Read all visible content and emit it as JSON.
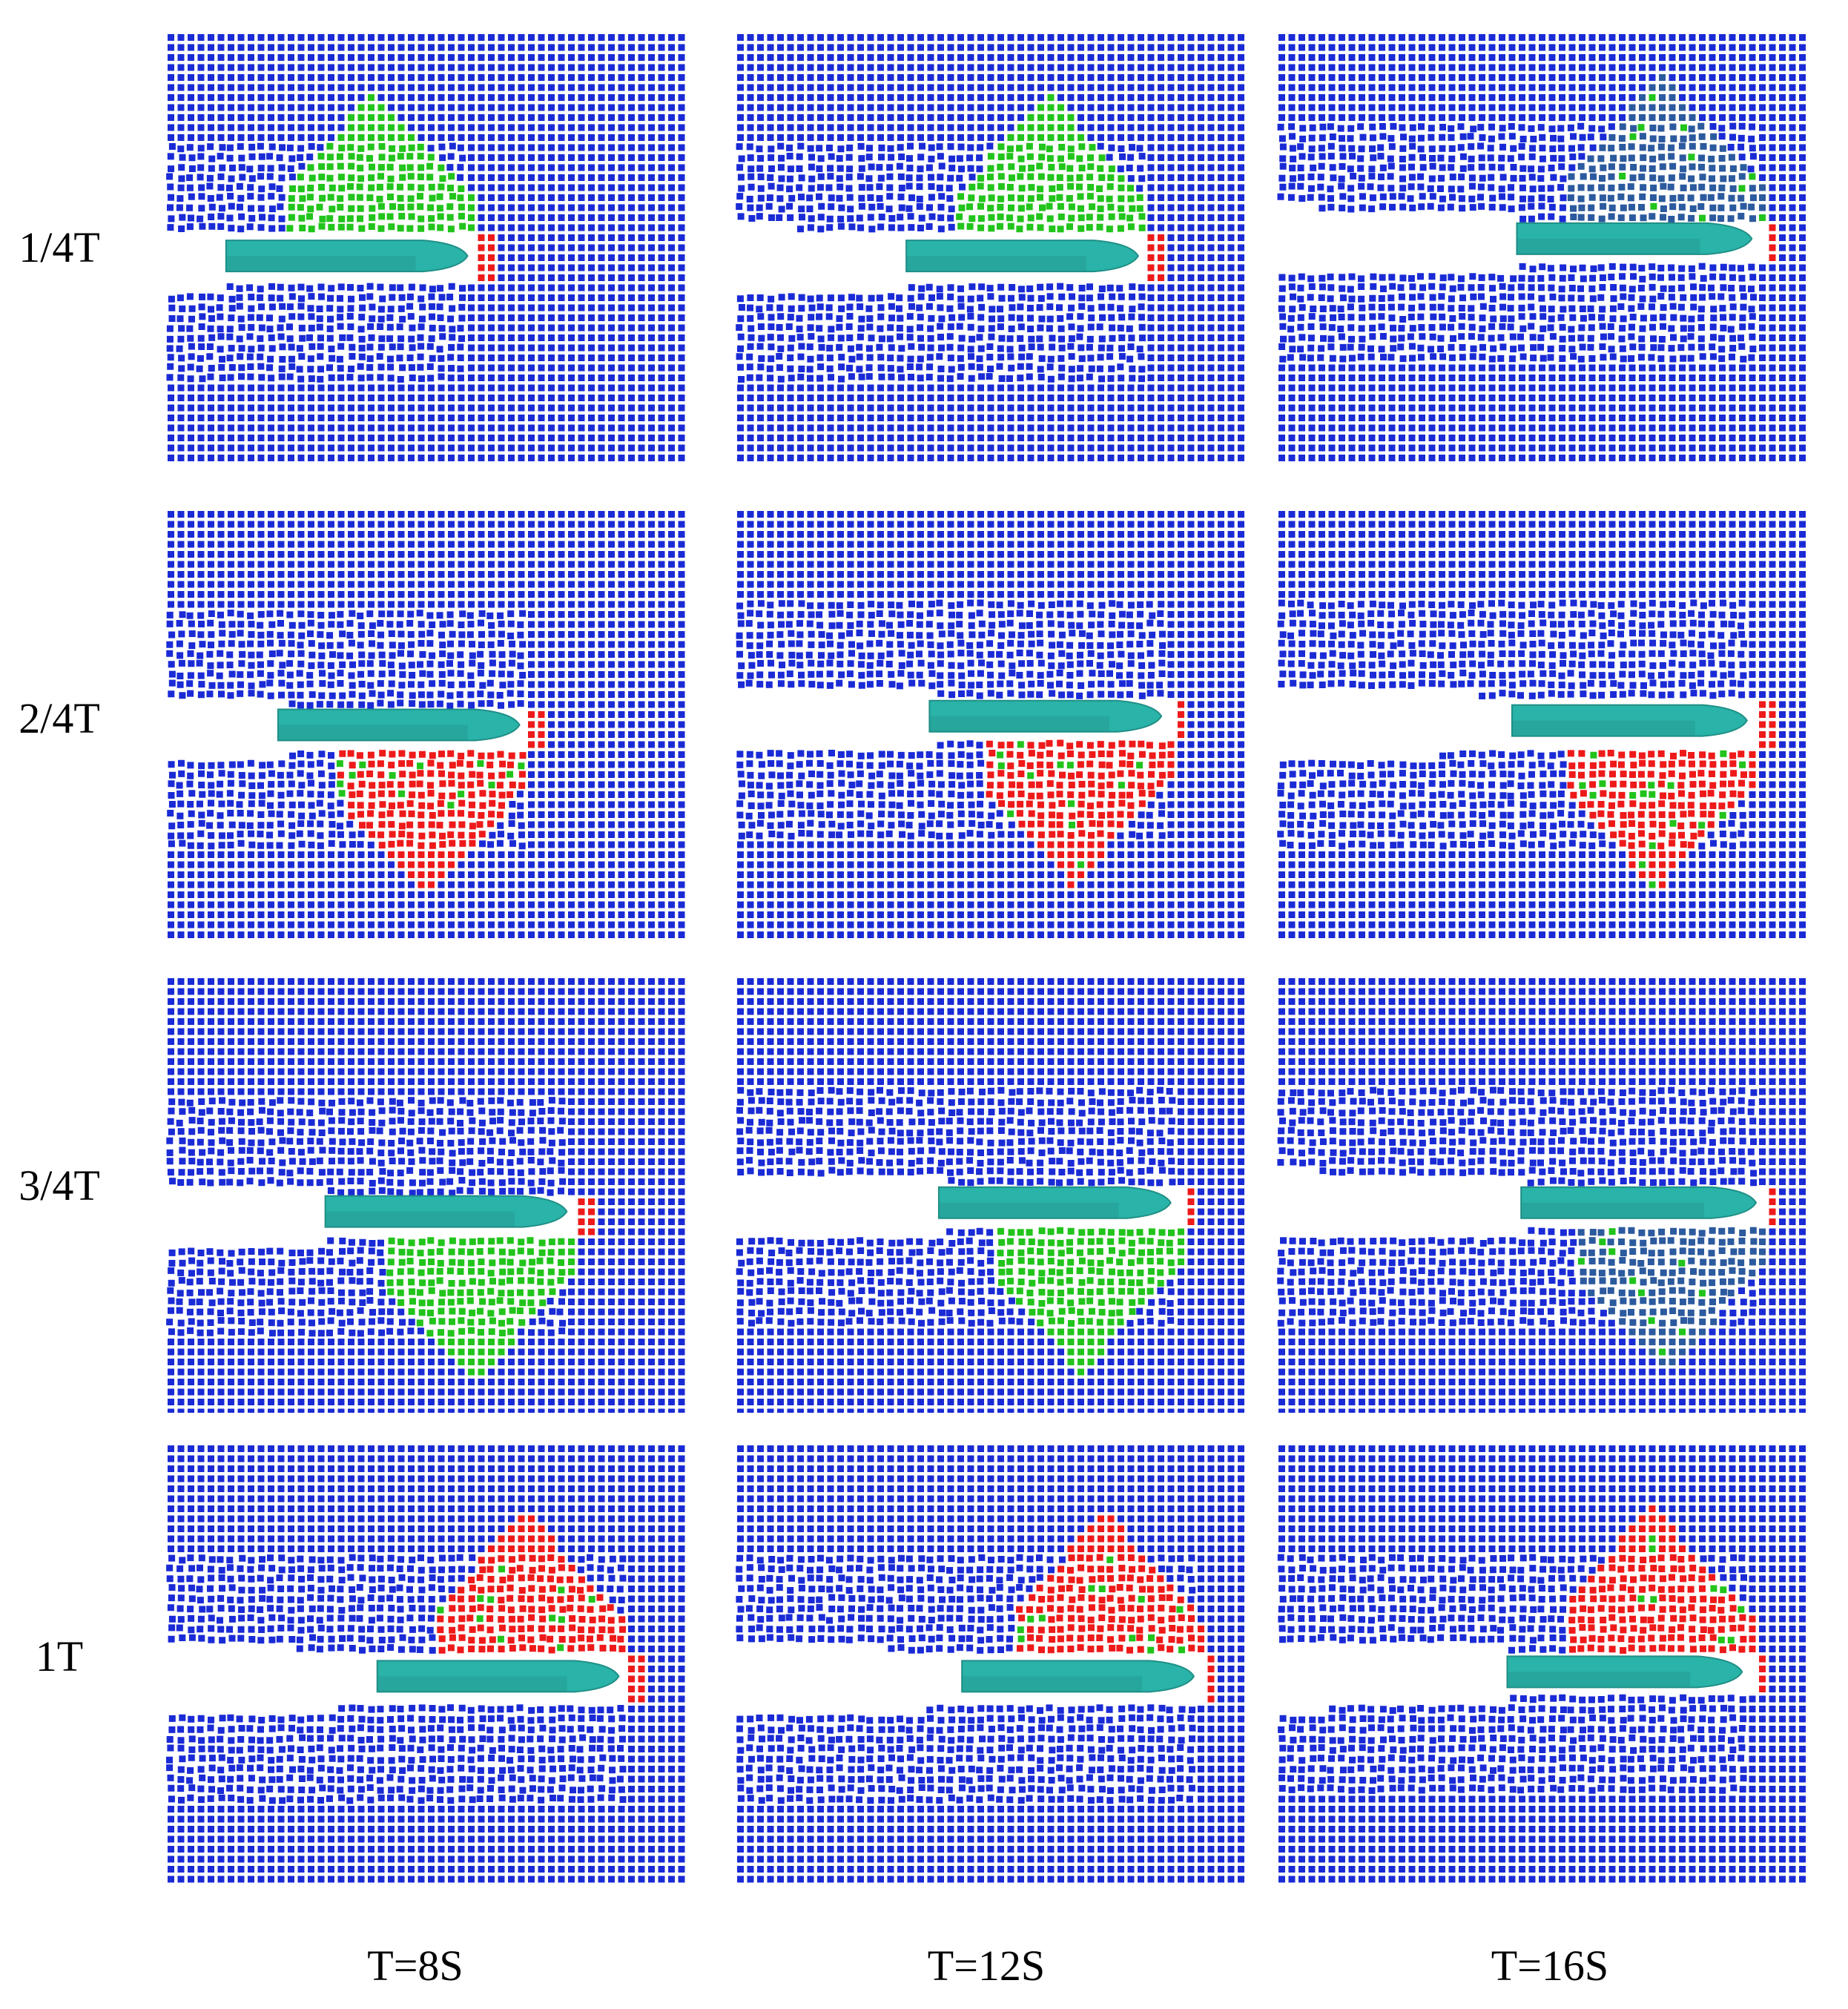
{
  "row_labels": [
    "1/4T",
    "2/4T",
    "3/4T",
    "1T"
  ],
  "column_labels": [
    "T=8S",
    "T=12S",
    "T=16S"
  ],
  "colors": {
    "particle_blue": "#1a2bd6",
    "particle_deep_blue": "#2c5a9e",
    "particle_green": "#22c41c",
    "particle_red": "#ee1a1a",
    "hull": "#2ab3a8",
    "hull_shadow": "#1f8f86",
    "background": "#ffffff"
  },
  "panels": [
    {
      "row": 0,
      "col": 0,
      "highlight_side": "upper",
      "highlight_color": "green",
      "bow_color": "red"
    },
    {
      "row": 0,
      "col": 1,
      "highlight_side": "upper",
      "highlight_color": "green",
      "bow_color": "red"
    },
    {
      "row": 0,
      "col": 2,
      "highlight_side": "upper",
      "highlight_color": "deep_blue",
      "bow_color": "red"
    },
    {
      "row": 1,
      "col": 0,
      "highlight_side": "lower",
      "highlight_color": "red",
      "bow_color": "red"
    },
    {
      "row": 1,
      "col": 1,
      "highlight_side": "lower",
      "highlight_color": "red",
      "bow_color": "red"
    },
    {
      "row": 1,
      "col": 2,
      "highlight_side": "lower",
      "highlight_color": "red",
      "bow_color": "red"
    },
    {
      "row": 2,
      "col": 0,
      "highlight_side": "lower",
      "highlight_color": "green",
      "bow_color": "red"
    },
    {
      "row": 2,
      "col": 1,
      "highlight_side": "lower",
      "highlight_color": "green",
      "bow_color": "red"
    },
    {
      "row": 2,
      "col": 2,
      "highlight_side": "lower",
      "highlight_color": "deep_blue",
      "bow_color": "red"
    },
    {
      "row": 3,
      "col": 0,
      "highlight_side": "upper",
      "highlight_color": "red",
      "bow_color": "red"
    },
    {
      "row": 3,
      "col": 1,
      "highlight_side": "upper",
      "highlight_color": "red",
      "bow_color": "red"
    },
    {
      "row": 3,
      "col": 2,
      "highlight_side": "upper",
      "highlight_color": "red",
      "bow_color": "red"
    }
  ]
}
